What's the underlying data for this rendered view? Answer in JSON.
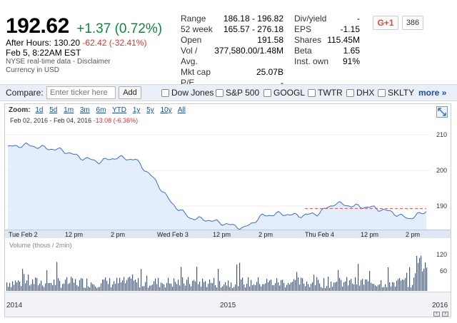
{
  "quote": {
    "price": "192.62",
    "change": "+1.37 (0.72%)",
    "after_hours_label": "After Hours:",
    "after_hours_price": "130.20",
    "after_hours_change": "-62.42 (-32.41%)",
    "datetime": "Feb 5, 8:22AM EST",
    "source": "NYSE real-time data - Disclaimer",
    "currency": "Currency in USD"
  },
  "stats_left": [
    {
      "label": "Range",
      "value": "186.18 - 196.82"
    },
    {
      "label": "52 week",
      "value": "165.57 - 276.18"
    },
    {
      "label": "Open",
      "value": "191.58"
    },
    {
      "label": "Vol / Avg.",
      "value": "377,580.00/1.48M"
    },
    {
      "label": "Mkt cap",
      "value": "25.07B"
    },
    {
      "label": "P/E",
      "value": "-"
    }
  ],
  "stats_right": [
    {
      "label": "Div/yield",
      "value": "-"
    },
    {
      "label": "EPS",
      "value": "-1.15"
    },
    {
      "label": "Shares",
      "value": "115.45M"
    },
    {
      "label": "Beta",
      "value": "1.65"
    },
    {
      "label": "Inst. own",
      "value": "91%"
    }
  ],
  "social": {
    "gplus_label": "G+1",
    "count": "386"
  },
  "compare": {
    "label": "Compare:",
    "placeholder": "Enter ticker here",
    "add_label": "Add",
    "tickers": [
      "Dow Jones",
      "S&P 500",
      "GOOGL",
      "TWTR",
      "DHX",
      "SKLTY"
    ],
    "more_label": "more »"
  },
  "chart": {
    "zoom_label": "Zoom:",
    "zoom_options": [
      "1d",
      "5d",
      "1m",
      "3m",
      "6m",
      "YTD",
      "1y",
      "5y",
      "10y",
      "All"
    ],
    "date_range": "Feb 02, 2016  -  Feb 04, 2016",
    "range_change": "-13.08 (-6.36%)",
    "y_ticks": [
      "210",
      "200",
      "190"
    ],
    "x_ticks": [
      "Tue Feb 2",
      "12 pm",
      "2 pm",
      "Wed Feb 3",
      "12 pm",
      "2 pm",
      "Thu Feb 4",
      "12 pm",
      "2 pm"
    ],
    "volume_label": "Volume (thous / 2min)",
    "volume_ticks": [
      "120",
      "60"
    ],
    "nav_years": [
      "2014",
      "2015",
      "2016"
    ],
    "line_color": "#3a6fc4",
    "fill_color": "#e4eefa",
    "volume_color": "#1f5fc6",
    "prev_close_color": "#e05050"
  },
  "chart_data": {
    "type": "line",
    "title": "",
    "xlabel": "",
    "ylabel": "",
    "ylim": [
      186,
      211
    ],
    "x": [
      "Feb 2 9:30",
      "Feb 2 10:00",
      "Feb 2 11:00",
      "Feb 2 12:00",
      "Feb 2 13:00",
      "Feb 2 14:00",
      "Feb 2 15:00",
      "Feb 2 16:00",
      "Feb 3 9:30",
      "Feb 3 10:00",
      "Feb 3 11:00",
      "Feb 3 12:00",
      "Feb 3 13:00",
      "Feb 3 14:00",
      "Feb 3 15:00",
      "Feb 3 16:00",
      "Feb 4 9:30",
      "Feb 4 10:00",
      "Feb 4 11:00",
      "Feb 4 12:00",
      "Feb 4 13:00",
      "Feb 4 14:00",
      "Feb 4 15:00",
      "Feb 4 16:00"
    ],
    "series": [
      {
        "values": [
          206.0,
          206.5,
          205.8,
          205.2,
          203.5,
          202.5,
          203.5,
          203.0,
          198.5,
          192.5,
          189.0,
          188.5,
          187.5,
          186.5,
          189.5,
          190.0,
          189.5,
          190.0,
          192.5,
          191.8,
          191.5,
          190.5,
          188.8,
          190.5
        ]
      }
    ],
    "prev_close": 191.25,
    "volume_ylim": [
      0,
      120
    ]
  }
}
